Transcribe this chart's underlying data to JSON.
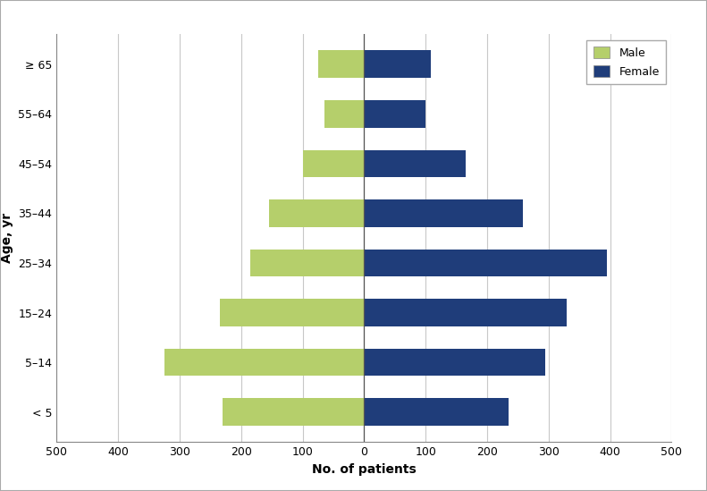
{
  "age_groups": [
    "< 5",
    "5–14",
    "15–24",
    "25–34",
    "35–44",
    "45–54",
    "55–64",
    "≥ 65"
  ],
  "male_values": [
    230,
    325,
    235,
    185,
    155,
    100,
    65,
    75
  ],
  "female_values": [
    235,
    295,
    330,
    395,
    258,
    165,
    100,
    108
  ],
  "male_color": "#b5cf6b",
  "female_color": "#1f3d7a",
  "xlabel": "No. of patients",
  "ylabel": "Age, yr",
  "background_color": "#ffffff",
  "legend_male": "Male",
  "legend_female": "Female",
  "bar_height": 0.55,
  "grid_color": "#c8c8c8",
  "spine_color": "#888888",
  "tick_fontsize": 9,
  "label_fontsize": 10
}
